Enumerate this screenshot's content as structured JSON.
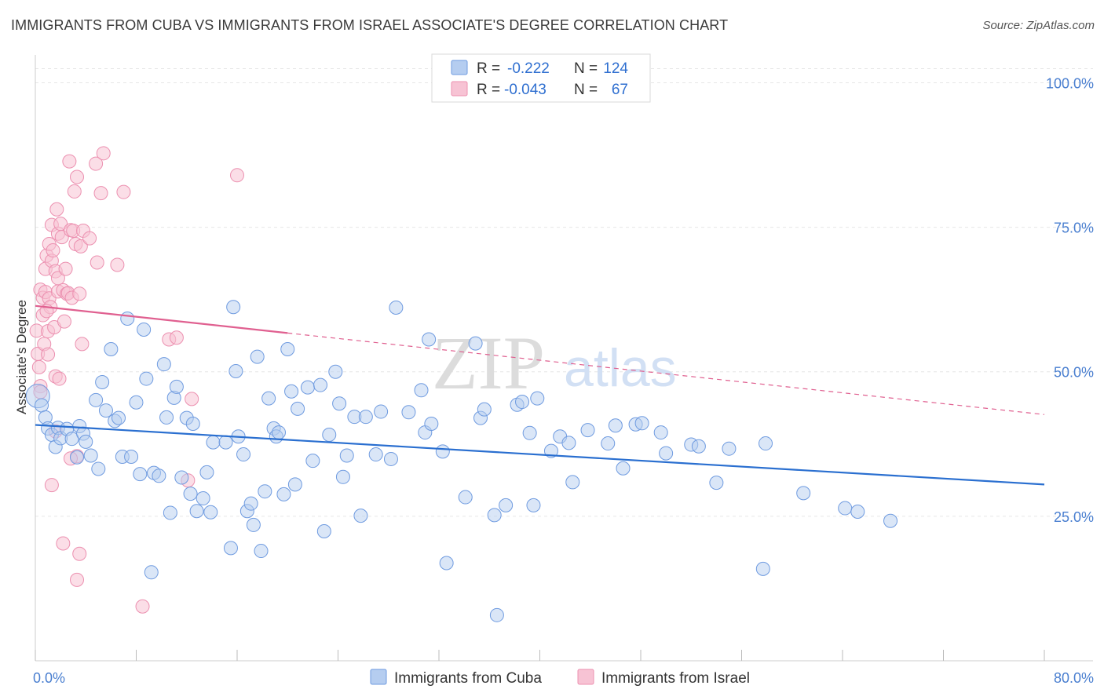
{
  "title": "IMMIGRANTS FROM CUBA VS IMMIGRANTS FROM ISRAEL ASSOCIATE'S DEGREE CORRELATION CHART",
  "source": "Source: ZipAtlas.com",
  "watermark": {
    "zip": "ZIP",
    "atlas": "atlas"
  },
  "colors": {
    "cuba_fill": "#b5cdf0",
    "cuba_stroke": "#6f9be0",
    "cuba_line": "#2a6fd0",
    "israel_fill": "#f7c3d4",
    "israel_stroke": "#ec90b0",
    "israel_line": "#e06090",
    "tick_color": "#4a7fd0",
    "grid": "#e6e6e6"
  },
  "legend": {
    "rows": [
      {
        "r_label": "R =",
        "r_value": "-0.222",
        "n_label": "N =",
        "n_value": "124"
      },
      {
        "r_label": "R =",
        "r_value": "-0.043",
        "n_label": "N =",
        "n_value": "67"
      }
    ]
  },
  "chart_data": {
    "type": "scatter",
    "title": "IMMIGRANTS FROM CUBA VS IMMIGRANTS FROM ISRAEL ASSOCIATE'S DEGREE CORRELATION CHART",
    "xlabel": "",
    "ylabel": "Associate's Degree",
    "xlim": [
      0,
      80
    ],
    "ylim": [
      0,
      104
    ],
    "x_tick_labels": [
      "0.0%",
      "80.0%"
    ],
    "y_ticks": [
      25,
      50,
      75,
      100
    ],
    "y_tick_labels": [
      "25.0%",
      "50.0%",
      "75.0%",
      "100.0%"
    ],
    "legend_position": "top-center",
    "series": [
      {
        "name": "Immigrants from Cuba",
        "r": -0.222,
        "n": 124,
        "trend": {
          "x": [
            0,
            80
          ],
          "y": [
            40.8,
            30.5
          ],
          "dashed_from": null
        },
        "points": [
          [
            0.2,
            45.8
          ],
          [
            0.5,
            44.2
          ],
          [
            0.8,
            42.1
          ],
          [
            1.0,
            40.2
          ],
          [
            1.3,
            39.1
          ],
          [
            1.6,
            37.0
          ],
          [
            1.8,
            40.3
          ],
          [
            2.0,
            38.5
          ],
          [
            2.5,
            40.1
          ],
          [
            2.9,
            38.4
          ],
          [
            3.3,
            35.2
          ],
          [
            3.5,
            40.6
          ],
          [
            3.8,
            39.3
          ],
          [
            4.0,
            37.9
          ],
          [
            4.4,
            35.5
          ],
          [
            4.8,
            45.1
          ],
          [
            5.0,
            33.2
          ],
          [
            5.3,
            48.2
          ],
          [
            5.6,
            43.3
          ],
          [
            6.0,
            53.9
          ],
          [
            6.3,
            41.5
          ],
          [
            6.6,
            42.0
          ],
          [
            6.9,
            35.3
          ],
          [
            7.3,
            59.2
          ],
          [
            7.6,
            35.3
          ],
          [
            8.0,
            44.7
          ],
          [
            8.3,
            32.3
          ],
          [
            8.6,
            57.3
          ],
          [
            8.8,
            48.8
          ],
          [
            9.4,
            32.5
          ],
          [
            9.8,
            32.0
          ],
          [
            10.2,
            51.3
          ],
          [
            10.4,
            42.1
          ],
          [
            10.7,
            25.6
          ],
          [
            11.0,
            45.5
          ],
          [
            11.2,
            47.4
          ],
          [
            11.6,
            31.7
          ],
          [
            12.0,
            42.0
          ],
          [
            12.3,
            28.9
          ],
          [
            12.5,
            41.0
          ],
          [
            12.8,
            25.9
          ],
          [
            13.3,
            28.1
          ],
          [
            13.6,
            32.6
          ],
          [
            13.9,
            25.7
          ],
          [
            14.1,
            37.8
          ],
          [
            9.2,
            15.3
          ],
          [
            15.1,
            37.8
          ],
          [
            15.5,
            19.5
          ],
          [
            15.7,
            61.2
          ],
          [
            15.9,
            50.1
          ],
          [
            16.1,
            38.8
          ],
          [
            16.5,
            35.7
          ],
          [
            16.8,
            25.9
          ],
          [
            17.1,
            27.2
          ],
          [
            17.3,
            23.5
          ],
          [
            17.6,
            52.6
          ],
          [
            17.9,
            19.0
          ],
          [
            18.2,
            29.3
          ],
          [
            18.5,
            45.4
          ],
          [
            18.9,
            40.2
          ],
          [
            19.1,
            38.8
          ],
          [
            19.3,
            39.5
          ],
          [
            19.7,
            28.8
          ],
          [
            20.0,
            53.9
          ],
          [
            20.3,
            46.6
          ],
          [
            20.6,
            30.5
          ],
          [
            20.8,
            43.6
          ],
          [
            21.6,
            47.3
          ],
          [
            22.0,
            34.6
          ],
          [
            22.6,
            47.7
          ],
          [
            22.9,
            22.4
          ],
          [
            23.3,
            39.1
          ],
          [
            23.8,
            50.0
          ],
          [
            24.1,
            44.5
          ],
          [
            24.4,
            31.8
          ],
          [
            24.7,
            35.5
          ],
          [
            25.3,
            42.2
          ],
          [
            25.8,
            25.1
          ],
          [
            26.2,
            42.2
          ],
          [
            27.0,
            35.7
          ],
          [
            27.4,
            43.1
          ],
          [
            28.2,
            34.9
          ],
          [
            28.6,
            61.1
          ],
          [
            29.6,
            43.0
          ],
          [
            30.6,
            46.8
          ],
          [
            30.9,
            39.5
          ],
          [
            31.2,
            55.6
          ],
          [
            31.4,
            41.0
          ],
          [
            32.3,
            36.2
          ],
          [
            32.6,
            16.9
          ],
          [
            34.1,
            28.3
          ],
          [
            34.9,
            54.9
          ],
          [
            35.3,
            42.0
          ],
          [
            35.6,
            43.5
          ],
          [
            36.4,
            25.2
          ],
          [
            37.3,
            26.9
          ],
          [
            36.6,
            7.9
          ],
          [
            38.2,
            44.3
          ],
          [
            38.6,
            44.8
          ],
          [
            39.2,
            39.4
          ],
          [
            39.5,
            26.9
          ],
          [
            39.8,
            45.4
          ],
          [
            40.9,
            36.3
          ],
          [
            41.6,
            38.8
          ],
          [
            42.3,
            37.7
          ],
          [
            42.6,
            30.9
          ],
          [
            43.8,
            39.9
          ],
          [
            45.4,
            37.6
          ],
          [
            46.0,
            40.7
          ],
          [
            46.6,
            33.3
          ],
          [
            47.6,
            40.9
          ],
          [
            48.1,
            41.1
          ],
          [
            49.6,
            39.5
          ],
          [
            50.0,
            35.9
          ],
          [
            52.0,
            37.4
          ],
          [
            52.6,
            37.1
          ],
          [
            54.0,
            30.8
          ],
          [
            55.0,
            36.7
          ],
          [
            57.7,
            15.9
          ],
          [
            57.9,
            37.6
          ],
          [
            60.9,
            29.0
          ],
          [
            64.2,
            26.4
          ],
          [
            65.2,
            25.8
          ],
          [
            67.8,
            24.2
          ]
        ]
      },
      {
        "name": "Immigrants from Israel",
        "r": -0.043,
        "n": 67,
        "trend": {
          "x": [
            0,
            80
          ],
          "y": [
            61.4,
            42.6
          ],
          "dashed_from": 20
        },
        "points": [
          [
            0.1,
            57.1
          ],
          [
            0.2,
            53.1
          ],
          [
            0.3,
            50.8
          ],
          [
            0.4,
            47.5
          ],
          [
            0.4,
            64.2
          ],
          [
            0.6,
            62.8
          ],
          [
            0.6,
            59.8
          ],
          [
            0.7,
            54.8
          ],
          [
            0.8,
            67.8
          ],
          [
            0.8,
            63.8
          ],
          [
            0.9,
            70.1
          ],
          [
            1.0,
            57.0
          ],
          [
            1.0,
            53.0
          ],
          [
            1.1,
            72.1
          ],
          [
            1.1,
            62.7
          ],
          [
            1.2,
            61.2
          ],
          [
            1.3,
            69.2
          ],
          [
            1.3,
            75.4
          ],
          [
            1.4,
            71.0
          ],
          [
            1.5,
            57.7
          ],
          [
            1.6,
            49.2
          ],
          [
            1.6,
            67.4
          ],
          [
            1.7,
            78.1
          ],
          [
            1.8,
            73.9
          ],
          [
            1.8,
            66.2
          ],
          [
            1.8,
            63.9
          ],
          [
            1.9,
            48.8
          ],
          [
            2.0,
            75.6
          ],
          [
            2.1,
            73.3
          ],
          [
            2.2,
            64.1
          ],
          [
            2.3,
            58.7
          ],
          [
            2.4,
            67.8
          ],
          [
            2.5,
            63.5
          ],
          [
            2.6,
            63.6
          ],
          [
            2.7,
            86.4
          ],
          [
            2.8,
            74.5
          ],
          [
            2.9,
            62.8
          ],
          [
            3.0,
            74.4
          ],
          [
            3.1,
            81.2
          ],
          [
            3.2,
            72.1
          ],
          [
            3.3,
            83.7
          ],
          [
            3.3,
            35.4
          ],
          [
            3.5,
            63.5
          ],
          [
            3.6,
            71.7
          ],
          [
            3.7,
            54.8
          ],
          [
            3.8,
            74.4
          ],
          [
            4.3,
            73.1
          ],
          [
            4.8,
            86.0
          ],
          [
            4.9,
            68.9
          ],
          [
            5.2,
            80.9
          ],
          [
            5.4,
            87.8
          ],
          [
            6.5,
            68.5
          ],
          [
            7.0,
            81.1
          ],
          [
            10.6,
            55.6
          ],
          [
            11.2,
            55.9
          ],
          [
            12.4,
            45.3
          ],
          [
            12.1,
            31.2
          ],
          [
            16.0,
            84.0
          ],
          [
            1.3,
            30.4
          ],
          [
            2.2,
            20.3
          ],
          [
            3.5,
            18.5
          ],
          [
            3.3,
            14.0
          ],
          [
            8.5,
            9.4
          ],
          [
            0.4,
            46.5
          ],
          [
            2.8,
            35.0
          ],
          [
            1.6,
            39.7
          ],
          [
            0.9,
            60.5
          ]
        ]
      }
    ]
  },
  "bottom_legend": {
    "items": [
      "Immigrants from Cuba",
      "Immigrants from Israel"
    ]
  }
}
